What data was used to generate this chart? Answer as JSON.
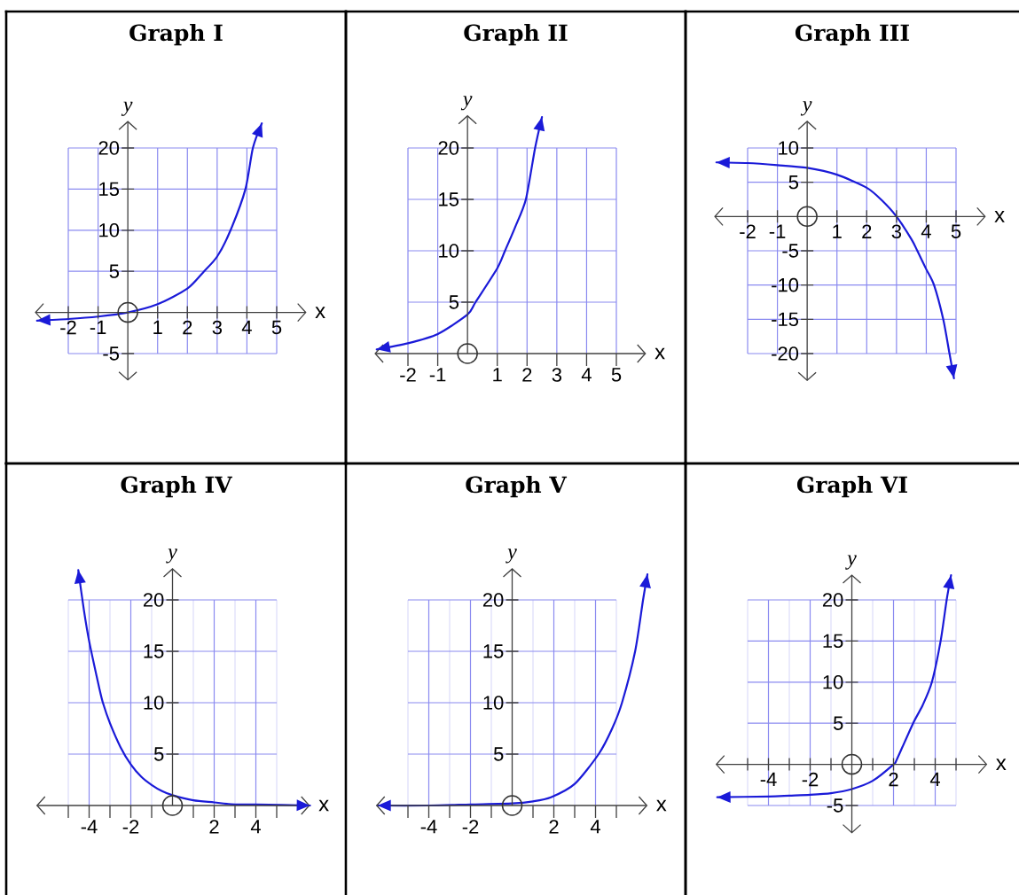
{
  "chart_data": [
    {
      "type": "line",
      "title": "Graph I",
      "xlabel": "x",
      "ylabel": "y",
      "xlim": [
        -3.1,
        6
      ],
      "ylim": [
        -8.2,
        23.3
      ],
      "xticks": [
        -2,
        -1,
        1,
        2,
        3,
        4,
        5
      ],
      "yticks": [
        -5,
        5,
        10,
        15,
        20
      ],
      "grid": true,
      "series": [
        {
          "color": "#1a1ad8",
          "x": [
            -3.05,
            -2,
            -1,
            0,
            1,
            2,
            2.56,
            3,
            3.45,
            3.95,
            4.2,
            4.5
          ],
          "values": [
            -1,
            -0.8,
            -0.5,
            0,
            1,
            2.9,
            5,
            6.8,
            10,
            15,
            20,
            23
          ]
        },
        {
          "type": "scatter",
          "marker": "circle",
          "color": "#333333",
          "x": [
            0
          ],
          "values": [
            0
          ]
        }
      ]
    },
    {
      "type": "line",
      "title": "Graph II",
      "xlabel": "x",
      "ylabel": "y",
      "xlim": [
        -3.1,
        6
      ],
      "ylim": [
        0,
        23.2
      ],
      "xticks": [
        -2,
        -1,
        1,
        2,
        3,
        4,
        5
      ],
      "yticks": [
        5,
        10,
        15,
        20
      ],
      "grid": true,
      "series": [
        {
          "color": "#1a1ad8",
          "x": [
            -3.05,
            -2,
            -1,
            0,
            0.27,
            1,
            1.26,
            1.6,
            1.96,
            2.27,
            2.5
          ],
          "values": [
            0.4,
            1,
            1.9,
            3.8,
            5,
            8.3,
            10,
            12.3,
            15,
            20,
            23
          ]
        },
        {
          "type": "scatter",
          "marker": "circle",
          "color": "#333333",
          "x": [
            0
          ],
          "values": [
            0
          ]
        }
      ]
    },
    {
      "type": "line",
      "title": "Graph III",
      "xlabel": "x",
      "ylabel": "y",
      "xlim": [
        -3.1,
        6
      ],
      "ylim": [
        -23.9,
        14
      ],
      "xticks": [
        -2,
        -1,
        1,
        2,
        3,
        4,
        5
      ],
      "yticks": [
        -20,
        -15,
        -10,
        -5,
        5,
        10
      ],
      "grid": true,
      "series": [
        {
          "color": "#1a1ad8",
          "x": [
            -3.05,
            -2,
            -1,
            0,
            1,
            2,
            2.5,
            3,
            3.5,
            3.7,
            4,
            4.26,
            4.57,
            4.78,
            4.93
          ],
          "values": [
            7.9,
            7.8,
            7.5,
            7.1,
            6.1,
            4.2,
            2.4,
            0,
            -3.3,
            -5,
            -7.7,
            -10,
            -15,
            -20,
            -23.6
          ]
        },
        {
          "type": "scatter",
          "marker": "circle",
          "color": "#333333",
          "x": [
            0
          ],
          "values": [
            0
          ]
        }
      ]
    },
    {
      "type": "line",
      "title": "Graph IV",
      "xlabel": "x",
      "ylabel": "y",
      "xlim": [
        -6.5,
        6.6
      ],
      "ylim": [
        0,
        23.1
      ],
      "xticks": [
        {
          "value": -5,
          "label": null
        },
        -4,
        {
          "value": -3,
          "label": null
        },
        -2,
        {
          "value": -1,
          "label": null
        },
        {
          "value": 1,
          "label": null
        },
        2,
        {
          "value": 3,
          "label": null
        },
        4,
        {
          "value": 5,
          "label": null
        }
      ],
      "yticks": [
        5,
        10,
        15,
        20
      ],
      "grid": true,
      "series": [
        {
          "color": "#1a1ad8",
          "x": [
            -4.52,
            -4.25,
            -4,
            -3.5,
            -3.34,
            -3,
            -2.5,
            -2,
            -1.5,
            -1,
            -0.5,
            0,
            1,
            2,
            3,
            4,
            6.6
          ],
          "values": [
            22.9,
            19,
            16,
            11.3,
            10,
            8,
            5.7,
            4,
            2.8,
            2,
            1.4,
            1,
            0.5,
            0.3,
            0.1,
            0.1,
            0
          ]
        },
        {
          "type": "scatter",
          "marker": "circle",
          "color": "#333333",
          "x": [
            0
          ],
          "values": [
            0
          ]
        }
      ]
    },
    {
      "type": "line",
      "title": "Graph V",
      "xlabel": "x",
      "ylabel": "y",
      "xlim": [
        -6.5,
        6.5
      ],
      "ylim": [
        0,
        23.1
      ],
      "xticks": [
        {
          "value": -5,
          "label": null
        },
        -4,
        {
          "value": -3,
          "label": null
        },
        -2,
        {
          "value": -1,
          "label": null
        },
        {
          "value": 1,
          "label": null
        },
        2,
        {
          "value": 3,
          "label": null
        },
        4,
        {
          "value": 5,
          "label": null
        }
      ],
      "yticks": [
        5,
        10,
        15,
        20
      ],
      "grid": true,
      "series": [
        {
          "color": "#1a1ad8",
          "x": [
            -6.46,
            -4,
            -2,
            0,
            1,
            1.86,
            3,
            4.15,
            4.8,
            5.27,
            5.9,
            6.28,
            6.49
          ],
          "values": [
            0,
            0,
            0.1,
            0.2,
            0.4,
            0.8,
            2.1,
            5,
            7.5,
            10,
            15,
            20,
            22.5
          ]
        },
        {
          "type": "scatter",
          "marker": "circle",
          "color": "#333333",
          "x": [
            0
          ],
          "values": [
            0
          ]
        }
      ]
    },
    {
      "type": "line",
      "title": "Graph VI",
      "xlabel": "x",
      "ylabel": "y",
      "xlim": [
        -6.5,
        6.5
      ],
      "ylim": [
        -8.3,
        23.1
      ],
      "xticks": [
        {
          "value": -5,
          "label": null
        },
        -4,
        {
          "value": -3,
          "label": null
        },
        -2,
        {
          "value": -1,
          "label": null
        },
        {
          "value": 1,
          "label": null
        },
        2,
        {
          "value": 3,
          "label": null
        },
        4,
        {
          "value": 5,
          "label": null
        }
      ],
      "yticks": [
        -5,
        5,
        10,
        15,
        20
      ],
      "grid": true,
      "series": [
        {
          "color": "#1a1ad8",
          "x": [
            -6.46,
            -4,
            -3,
            -2,
            -1,
            0,
            1,
            2,
            2.16,
            2.94,
            3.4,
            3.84,
            4.26,
            4.55,
            4.76
          ],
          "values": [
            -4,
            -3.9,
            -3.8,
            -3.7,
            -3.5,
            -3,
            -2,
            0,
            0.6,
            5,
            7.2,
            10,
            15,
            20,
            23
          ]
        },
        {
          "type": "scatter",
          "marker": "circle",
          "color": "#333333",
          "x": [
            0
          ],
          "values": [
            0
          ]
        }
      ]
    }
  ]
}
